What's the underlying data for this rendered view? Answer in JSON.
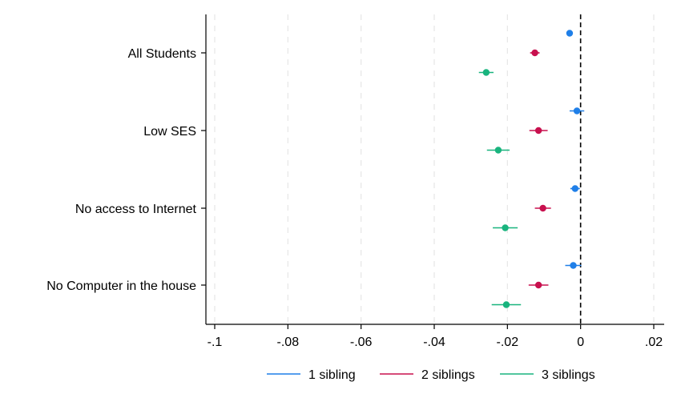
{
  "chart_data": {
    "type": "scatter",
    "orientation": "horizontal-coefficient-plot",
    "categories": [
      "All Students",
      "Low SES",
      "No access to Internet",
      "No Computer in the house"
    ],
    "x_ticks": [
      -0.1,
      -0.08,
      -0.06,
      -0.04,
      -0.02,
      0,
      0.02
    ],
    "x_tick_labels": [
      "-.1",
      "-.08",
      "-.06",
      "-.04",
      "-.02",
      "0",
      ".02"
    ],
    "xlim": [
      -0.1,
      0.02
    ],
    "reference_line_x": 0,
    "grid": "vertical dashed",
    "legend_position": "bottom",
    "series": [
      {
        "name": "1 sibling",
        "color": "#1f7fe8",
        "points": [
          {
            "x": -0.003,
            "ci": [
              -0.0038,
              -0.0022
            ]
          },
          {
            "x": -0.001,
            "ci": [
              -0.003,
              0.001
            ]
          },
          {
            "x": -0.0015,
            "ci": [
              -0.0028,
              -0.0002
            ]
          },
          {
            "x": -0.002,
            "ci": [
              -0.0042,
              0.0002
            ]
          }
        ]
      },
      {
        "name": "2 siblings",
        "color": "#c8104e",
        "points": [
          {
            "x": -0.0125,
            "ci": [
              -0.0138,
              -0.0112
            ]
          },
          {
            "x": -0.0115,
            "ci": [
              -0.014,
              -0.009
            ]
          },
          {
            "x": -0.0103,
            "ci": [
              -0.0125,
              -0.0081
            ]
          },
          {
            "x": -0.0115,
            "ci": [
              -0.0142,
              -0.0088
            ]
          }
        ]
      },
      {
        "name": "3 siblings",
        "color": "#19b47e",
        "points": [
          {
            "x": -0.0258,
            "ci": [
              -0.0278,
              -0.0238
            ]
          },
          {
            "x": -0.0225,
            "ci": [
              -0.0256,
              -0.0194
            ]
          },
          {
            "x": -0.0206,
            "ci": [
              -0.024,
              -0.0172
            ]
          },
          {
            "x": -0.0203,
            "ci": [
              -0.0243,
              -0.0163
            ]
          }
        ]
      }
    ]
  }
}
